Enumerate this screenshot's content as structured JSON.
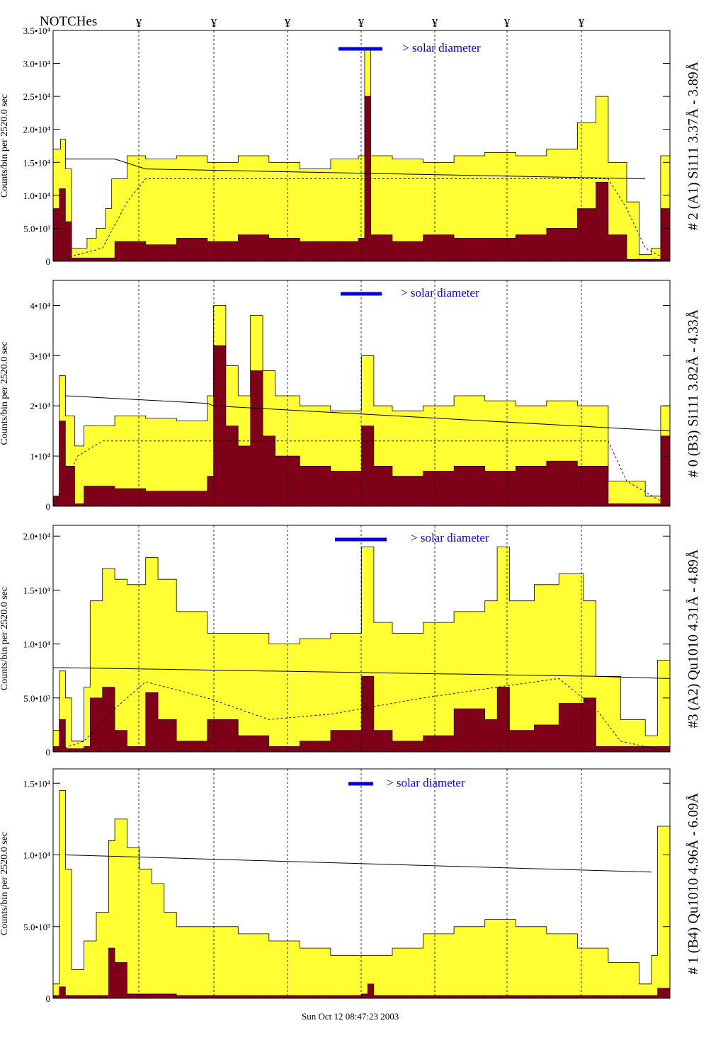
{
  "page": {
    "notches_label": "NOTCHes",
    "notch_symbol": "¥",
    "timestamp": "Sun Oct 12 08:47:23 2003"
  },
  "colors": {
    "fill_total": "#ffff33",
    "fill_peak": "#7f0019",
    "scale_bar": "#0000dd",
    "annotation_text": "#0000cc"
  },
  "notches": [
    196,
    302,
    406,
    510,
    614,
    716,
    821
  ],
  "chart_data": [
    {
      "type": "area",
      "ylabel": "Counts/bin per   2520.0 sec",
      "title_right": "# 2 (A1) Si111  3.37Å - 3.89Å",
      "scale_note": "> solar diameter",
      "ylim": [
        0,
        35000
      ],
      "ytick_labels": [
        "0",
        "5.0•10³",
        "1.0•10⁴",
        "1.5•10⁴",
        "2.0•10⁴",
        "2.5•10⁴",
        "3.0•10⁴",
        "3.5•10⁴"
      ],
      "yticks": [
        0,
        5000,
        10000,
        15000,
        20000,
        25000,
        30000,
        35000
      ],
      "total": [
        {
          "x": 0.0,
          "y": 17000
        },
        {
          "x": 0.012,
          "y": 18500
        },
        {
          "x": 0.02,
          "y": 14000
        },
        {
          "x": 0.03,
          "y": 2000
        },
        {
          "x": 0.055,
          "y": 3500
        },
        {
          "x": 0.07,
          "y": 5000
        },
        {
          "x": 0.085,
          "y": 8000
        },
        {
          "x": 0.095,
          "y": 12500
        },
        {
          "x": 0.12,
          "y": 16000
        },
        {
          "x": 0.15,
          "y": 15500
        },
        {
          "x": 0.2,
          "y": 16000
        },
        {
          "x": 0.25,
          "y": 15000
        },
        {
          "x": 0.3,
          "y": 16000
        },
        {
          "x": 0.35,
          "y": 15000
        },
        {
          "x": 0.4,
          "y": 14000
        },
        {
          "x": 0.45,
          "y": 15500
        },
        {
          "x": 0.495,
          "y": 16000
        },
        {
          "x": 0.505,
          "y": 32000
        },
        {
          "x": 0.515,
          "y": 16000
        },
        {
          "x": 0.55,
          "y": 15500
        },
        {
          "x": 0.6,
          "y": 15000
        },
        {
          "x": 0.65,
          "y": 16000
        },
        {
          "x": 0.7,
          "y": 16500
        },
        {
          "x": 0.75,
          "y": 16000
        },
        {
          "x": 0.8,
          "y": 17000
        },
        {
          "x": 0.85,
          "y": 21000
        },
        {
          "x": 0.88,
          "y": 25000
        },
        {
          "x": 0.9,
          "y": 15000
        },
        {
          "x": 0.93,
          "y": 9000
        },
        {
          "x": 0.95,
          "y": 1000
        },
        {
          "x": 0.97,
          "y": 2000
        },
        {
          "x": 0.985,
          "y": 16000
        },
        {
          "x": 1.0,
          "y": 4000
        }
      ],
      "peak": [
        {
          "x": 0.0,
          "y": 8000
        },
        {
          "x": 0.01,
          "y": 11000
        },
        {
          "x": 0.02,
          "y": 6000
        },
        {
          "x": 0.03,
          "y": 500
        },
        {
          "x": 0.09,
          "y": 500
        },
        {
          "x": 0.1,
          "y": 3000
        },
        {
          "x": 0.15,
          "y": 2500
        },
        {
          "x": 0.2,
          "y": 3500
        },
        {
          "x": 0.25,
          "y": 3000
        },
        {
          "x": 0.3,
          "y": 4000
        },
        {
          "x": 0.35,
          "y": 3500
        },
        {
          "x": 0.4,
          "y": 3000
        },
        {
          "x": 0.45,
          "y": 3000
        },
        {
          "x": 0.495,
          "y": 3500
        },
        {
          "x": 0.505,
          "y": 25000
        },
        {
          "x": 0.515,
          "y": 4000
        },
        {
          "x": 0.55,
          "y": 3000
        },
        {
          "x": 0.6,
          "y": 4000
        },
        {
          "x": 0.65,
          "y": 3500
        },
        {
          "x": 0.7,
          "y": 3500
        },
        {
          "x": 0.75,
          "y": 4000
        },
        {
          "x": 0.8,
          "y": 5000
        },
        {
          "x": 0.85,
          "y": 8000
        },
        {
          "x": 0.88,
          "y": 12000
        },
        {
          "x": 0.9,
          "y": 4000
        },
        {
          "x": 0.93,
          "y": 300
        },
        {
          "x": 0.96,
          "y": 300
        },
        {
          "x": 0.985,
          "y": 8000
        },
        {
          "x": 1.0,
          "y": 200
        }
      ],
      "dashed": [
        {
          "x": 0.0,
          "y": 0
        },
        {
          "x": 0.08,
          "y": 2000
        },
        {
          "x": 0.12,
          "y": 9000
        },
        {
          "x": 0.15,
          "y": 12500
        },
        {
          "x": 0.2,
          "y": 12500
        },
        {
          "x": 0.9,
          "y": 12500
        },
        {
          "x": 0.93,
          "y": 8000
        },
        {
          "x": 0.96,
          "y": 2000
        },
        {
          "x": 1.0,
          "y": 0
        }
      ],
      "solid": [
        {
          "x": 0.02,
          "y": 15500
        },
        {
          "x": 0.1,
          "y": 15500
        },
        {
          "x": 0.15,
          "y": 14000
        },
        {
          "x": 0.96,
          "y": 12500
        }
      ]
    },
    {
      "type": "area",
      "ylabel": "Counts/bin per   2520.0 sec",
      "title_right": "# 0 (B3) Si111  3.82Å - 4.33Å",
      "scale_note": "> solar diameter",
      "ylim": [
        0,
        45000
      ],
      "ytick_labels": [
        "0",
        "1•10⁴",
        "2•10⁴",
        "3•10⁴",
        "4•10⁴"
      ],
      "yticks": [
        0,
        10000,
        20000,
        30000,
        40000
      ],
      "total": [
        {
          "x": 0.0,
          "y": 2000
        },
        {
          "x": 0.01,
          "y": 26000
        },
        {
          "x": 0.02,
          "y": 18000
        },
        {
          "x": 0.035,
          "y": 12000
        },
        {
          "x": 0.05,
          "y": 16000
        },
        {
          "x": 0.1,
          "y": 18000
        },
        {
          "x": 0.15,
          "y": 17500
        },
        {
          "x": 0.2,
          "y": 17000
        },
        {
          "x": 0.25,
          "y": 22000
        },
        {
          "x": 0.26,
          "y": 40000
        },
        {
          "x": 0.28,
          "y": 28000
        },
        {
          "x": 0.3,
          "y": 22000
        },
        {
          "x": 0.32,
          "y": 38000
        },
        {
          "x": 0.34,
          "y": 27000
        },
        {
          "x": 0.36,
          "y": 22000
        },
        {
          "x": 0.4,
          "y": 20000
        },
        {
          "x": 0.45,
          "y": 19000
        },
        {
          "x": 0.5,
          "y": 30000
        },
        {
          "x": 0.52,
          "y": 20000
        },
        {
          "x": 0.55,
          "y": 19000
        },
        {
          "x": 0.6,
          "y": 20000
        },
        {
          "x": 0.65,
          "y": 22000
        },
        {
          "x": 0.7,
          "y": 21000
        },
        {
          "x": 0.75,
          "y": 20000
        },
        {
          "x": 0.8,
          "y": 21000
        },
        {
          "x": 0.85,
          "y": 20000
        },
        {
          "x": 0.9,
          "y": 5000
        },
        {
          "x": 0.96,
          "y": 2000
        },
        {
          "x": 0.985,
          "y": 20000
        },
        {
          "x": 1.0,
          "y": 1000
        }
      ],
      "peak": [
        {
          "x": 0.0,
          "y": 2000
        },
        {
          "x": 0.01,
          "y": 17000
        },
        {
          "x": 0.02,
          "y": 8000
        },
        {
          "x": 0.035,
          "y": 500
        },
        {
          "x": 0.05,
          "y": 4000
        },
        {
          "x": 0.1,
          "y": 3500
        },
        {
          "x": 0.15,
          "y": 3000
        },
        {
          "x": 0.2,
          "y": 3000
        },
        {
          "x": 0.25,
          "y": 6000
        },
        {
          "x": 0.26,
          "y": 32000
        },
        {
          "x": 0.28,
          "y": 16000
        },
        {
          "x": 0.3,
          "y": 12000
        },
        {
          "x": 0.32,
          "y": 27000
        },
        {
          "x": 0.34,
          "y": 14000
        },
        {
          "x": 0.36,
          "y": 10000
        },
        {
          "x": 0.4,
          "y": 8000
        },
        {
          "x": 0.45,
          "y": 7000
        },
        {
          "x": 0.5,
          "y": 16000
        },
        {
          "x": 0.52,
          "y": 8000
        },
        {
          "x": 0.55,
          "y": 6000
        },
        {
          "x": 0.6,
          "y": 7000
        },
        {
          "x": 0.65,
          "y": 8000
        },
        {
          "x": 0.7,
          "y": 7000
        },
        {
          "x": 0.75,
          "y": 8000
        },
        {
          "x": 0.8,
          "y": 9000
        },
        {
          "x": 0.85,
          "y": 8000
        },
        {
          "x": 0.9,
          "y": 500
        },
        {
          "x": 0.96,
          "y": 500
        },
        {
          "x": 0.985,
          "y": 14000
        },
        {
          "x": 1.0,
          "y": 500
        }
      ],
      "dashed": [
        {
          "x": 0.0,
          "y": 0
        },
        {
          "x": 0.04,
          "y": 10000
        },
        {
          "x": 0.08,
          "y": 13000
        },
        {
          "x": 0.9,
          "y": 13000
        },
        {
          "x": 0.93,
          "y": 5000
        },
        {
          "x": 1.0,
          "y": 0
        }
      ],
      "solid": [
        {
          "x": 0.02,
          "y": 22000
        },
        {
          "x": 0.25,
          "y": 20500
        },
        {
          "x": 0.26,
          "y": 20000
        },
        {
          "x": 0.92,
          "y": 15500
        },
        {
          "x": 1.0,
          "y": 15000
        }
      ]
    },
    {
      "type": "area",
      "ylabel": "Counts/bin per   2520.0 sec",
      "title_right": "#3 (A2) Qu1010  4.31Å - 4.89Å",
      "scale_note": "> solar diameter",
      "ylim": [
        0,
        21000
      ],
      "ytick_labels": [
        "0",
        "5.0•10³",
        "1.0•10⁴",
        "1.5•10⁴",
        "2.0•10⁴"
      ],
      "yticks": [
        0,
        5000,
        10000,
        15000,
        20000
      ],
      "total": [
        {
          "x": 0.0,
          "y": 2000
        },
        {
          "x": 0.01,
          "y": 7500
        },
        {
          "x": 0.02,
          "y": 5000
        },
        {
          "x": 0.03,
          "y": 1000
        },
        {
          "x": 0.05,
          "y": 6000
        },
        {
          "x": 0.06,
          "y": 14000
        },
        {
          "x": 0.08,
          "y": 17000
        },
        {
          "x": 0.1,
          "y": 16000
        },
        {
          "x": 0.12,
          "y": 15500
        },
        {
          "x": 0.15,
          "y": 18000
        },
        {
          "x": 0.17,
          "y": 16000
        },
        {
          "x": 0.2,
          "y": 13000
        },
        {
          "x": 0.25,
          "y": 11000
        },
        {
          "x": 0.3,
          "y": 11000
        },
        {
          "x": 0.35,
          "y": 10000
        },
        {
          "x": 0.4,
          "y": 10500
        },
        {
          "x": 0.45,
          "y": 11000
        },
        {
          "x": 0.5,
          "y": 19000
        },
        {
          "x": 0.52,
          "y": 12000
        },
        {
          "x": 0.55,
          "y": 11000
        },
        {
          "x": 0.6,
          "y": 12000
        },
        {
          "x": 0.65,
          "y": 13000
        },
        {
          "x": 0.7,
          "y": 14000
        },
        {
          "x": 0.72,
          "y": 19000
        },
        {
          "x": 0.74,
          "y": 14000
        },
        {
          "x": 0.78,
          "y": 15500
        },
        {
          "x": 0.82,
          "y": 16500
        },
        {
          "x": 0.86,
          "y": 14000
        },
        {
          "x": 0.88,
          "y": 7000
        },
        {
          "x": 0.92,
          "y": 3000
        },
        {
          "x": 0.96,
          "y": 1500
        },
        {
          "x": 0.98,
          "y": 8500
        },
        {
          "x": 1.0,
          "y": 1500
        }
      ],
      "peak": [
        {
          "x": 0.0,
          "y": 500
        },
        {
          "x": 0.01,
          "y": 3000
        },
        {
          "x": 0.02,
          "y": 300
        },
        {
          "x": 0.05,
          "y": 500
        },
        {
          "x": 0.06,
          "y": 5000
        },
        {
          "x": 0.08,
          "y": 6000
        },
        {
          "x": 0.1,
          "y": 2000
        },
        {
          "x": 0.12,
          "y": 500
        },
        {
          "x": 0.15,
          "y": 5500
        },
        {
          "x": 0.17,
          "y": 3000
        },
        {
          "x": 0.2,
          "y": 1000
        },
        {
          "x": 0.25,
          "y": 3000
        },
        {
          "x": 0.3,
          "y": 1500
        },
        {
          "x": 0.35,
          "y": 500
        },
        {
          "x": 0.4,
          "y": 1000
        },
        {
          "x": 0.45,
          "y": 2000
        },
        {
          "x": 0.5,
          "y": 7000
        },
        {
          "x": 0.52,
          "y": 2000
        },
        {
          "x": 0.55,
          "y": 1000
        },
        {
          "x": 0.6,
          "y": 1500
        },
        {
          "x": 0.65,
          "y": 4000
        },
        {
          "x": 0.7,
          "y": 3000
        },
        {
          "x": 0.72,
          "y": 6000
        },
        {
          "x": 0.74,
          "y": 2000
        },
        {
          "x": 0.78,
          "y": 2500
        },
        {
          "x": 0.82,
          "y": 4500
        },
        {
          "x": 0.86,
          "y": 5000
        },
        {
          "x": 0.88,
          "y": 500
        },
        {
          "x": 1.0,
          "y": 200
        }
      ],
      "dashed": [
        {
          "x": 0.0,
          "y": 0
        },
        {
          "x": 0.05,
          "y": 1000
        },
        {
          "x": 0.1,
          "y": 4000
        },
        {
          "x": 0.15,
          "y": 6500
        },
        {
          "x": 0.25,
          "y": 5000
        },
        {
          "x": 0.35,
          "y": 3000
        },
        {
          "x": 0.45,
          "y": 3500
        },
        {
          "x": 0.6,
          "y": 5000
        },
        {
          "x": 0.72,
          "y": 6000
        },
        {
          "x": 0.82,
          "y": 6800
        },
        {
          "x": 0.88,
          "y": 4000
        },
        {
          "x": 0.92,
          "y": 1000
        },
        {
          "x": 1.0,
          "y": 0
        }
      ],
      "solid": [
        {
          "x": 0.0,
          "y": 7800
        },
        {
          "x": 0.02,
          "y": 7800
        },
        {
          "x": 0.88,
          "y": 7000
        },
        {
          "x": 1.0,
          "y": 6800
        }
      ]
    },
    {
      "type": "area",
      "ylabel": "Counts/bin per   2520.0 sec",
      "title_right": "# 1 (B4) Qu1010 4.96Å - 6.09Å",
      "scale_note": "> solar diameter",
      "ylim": [
        0,
        16000
      ],
      "ytick_labels": [
        "0",
        "5.0•10³",
        "1.0•10⁴",
        "1.5•10⁴"
      ],
      "yticks": [
        0,
        5000,
        10000,
        15000
      ],
      "total": [
        {
          "x": 0.0,
          "y": 1000
        },
        {
          "x": 0.01,
          "y": 14500
        },
        {
          "x": 0.02,
          "y": 9000
        },
        {
          "x": 0.03,
          "y": 2000
        },
        {
          "x": 0.05,
          "y": 4000
        },
        {
          "x": 0.07,
          "y": 6000
        },
        {
          "x": 0.09,
          "y": 11000
        },
        {
          "x": 0.1,
          "y": 12500
        },
        {
          "x": 0.12,
          "y": 10500
        },
        {
          "x": 0.14,
          "y": 9000
        },
        {
          "x": 0.16,
          "y": 8000
        },
        {
          "x": 0.18,
          "y": 6000
        },
        {
          "x": 0.2,
          "y": 5000
        },
        {
          "x": 0.25,
          "y": 5000
        },
        {
          "x": 0.3,
          "y": 4500
        },
        {
          "x": 0.35,
          "y": 4000
        },
        {
          "x": 0.4,
          "y": 3500
        },
        {
          "x": 0.45,
          "y": 3000
        },
        {
          "x": 0.5,
          "y": 3000
        },
        {
          "x": 0.55,
          "y": 3500
        },
        {
          "x": 0.6,
          "y": 4500
        },
        {
          "x": 0.65,
          "y": 5000
        },
        {
          "x": 0.7,
          "y": 5500
        },
        {
          "x": 0.75,
          "y": 5000
        },
        {
          "x": 0.8,
          "y": 4500
        },
        {
          "x": 0.85,
          "y": 3500
        },
        {
          "x": 0.9,
          "y": 2500
        },
        {
          "x": 0.95,
          "y": 1000
        },
        {
          "x": 0.97,
          "y": 3000
        },
        {
          "x": 0.98,
          "y": 12000
        },
        {
          "x": 1.0,
          "y": 500
        }
      ],
      "peak": [
        {
          "x": 0.0,
          "y": 200
        },
        {
          "x": 0.01,
          "y": 800
        },
        {
          "x": 0.02,
          "y": 200
        },
        {
          "x": 0.08,
          "y": 200
        },
        {
          "x": 0.09,
          "y": 3500
        },
        {
          "x": 0.1,
          "y": 2500
        },
        {
          "x": 0.12,
          "y": 300
        },
        {
          "x": 0.2,
          "y": 200
        },
        {
          "x": 0.5,
          "y": 300
        },
        {
          "x": 0.51,
          "y": 1000
        },
        {
          "x": 0.52,
          "y": 200
        },
        {
          "x": 0.97,
          "y": 200
        },
        {
          "x": 0.98,
          "y": 700
        },
        {
          "x": 1.0,
          "y": 100
        }
      ],
      "dashed": [],
      "solid": [
        {
          "x": 0.02,
          "y": 10000
        },
        {
          "x": 0.97,
          "y": 8800
        }
      ]
    }
  ]
}
